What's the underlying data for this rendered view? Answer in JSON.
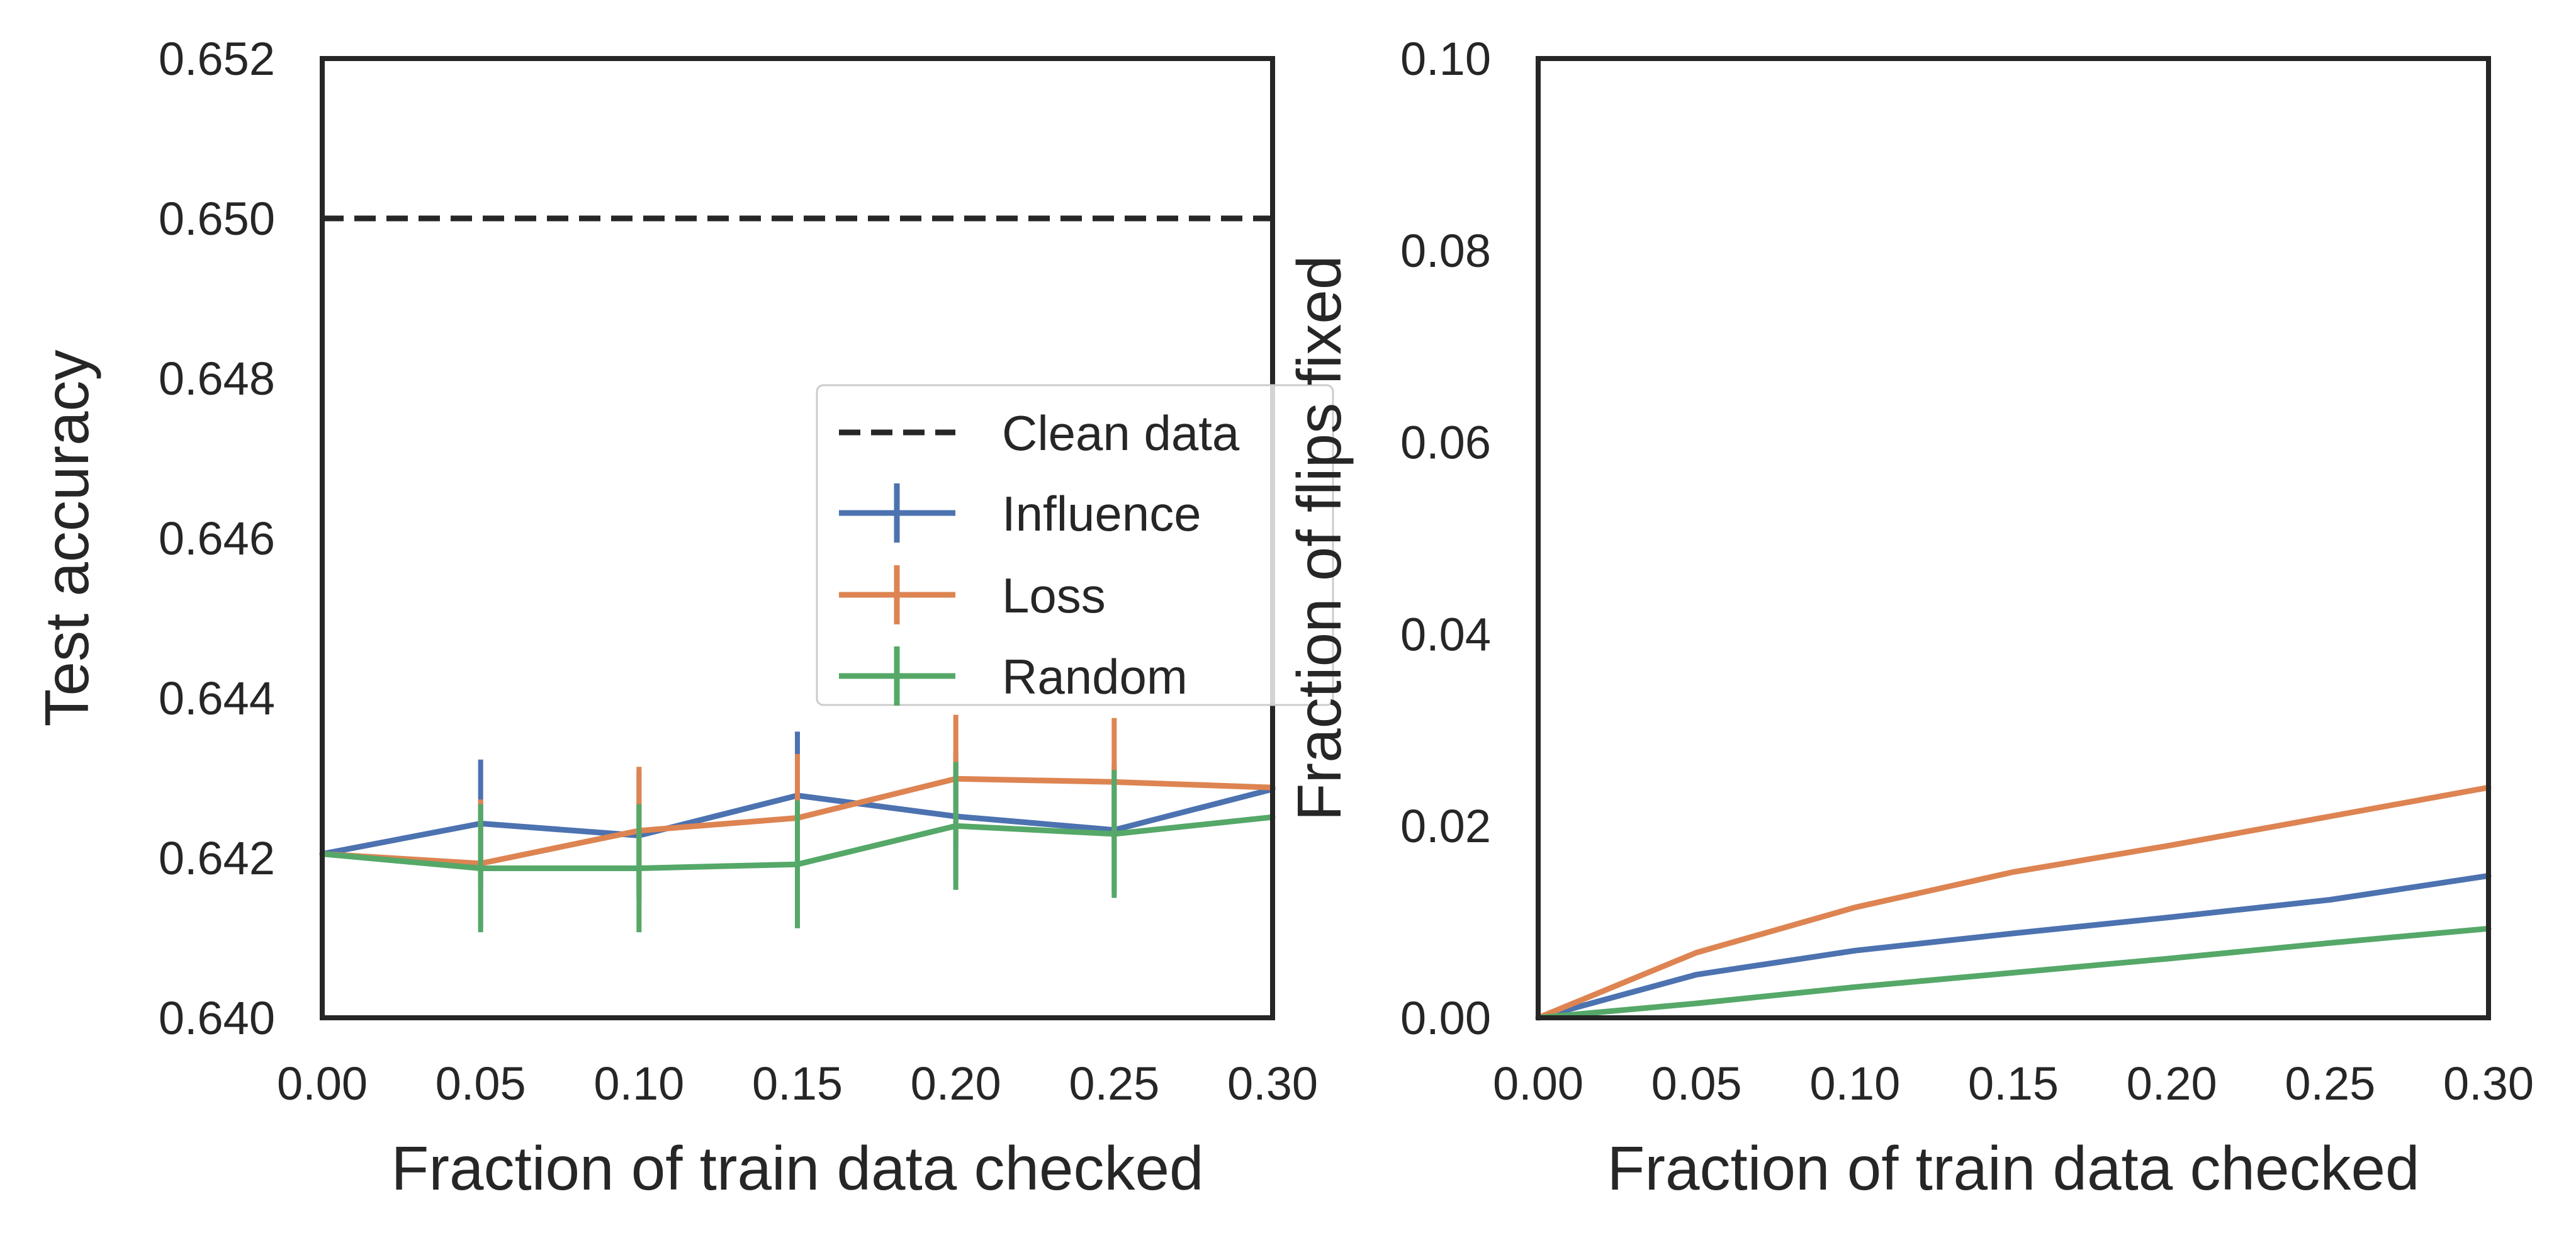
{
  "chart_data": [
    {
      "type": "line",
      "xlabel": "Fraction of train data checked",
      "ylabel": "Test accuracy",
      "xlim": [
        0.0,
        0.3
      ],
      "ylim": [
        0.64,
        0.652
      ],
      "x_ticks": [
        "0.00",
        "0.05",
        "0.10",
        "0.15",
        "0.20",
        "0.25",
        "0.30"
      ],
      "y_ticks": [
        "0.640",
        "0.642",
        "0.644",
        "0.646",
        "0.648",
        "0.650",
        "0.652"
      ],
      "grid": false,
      "legend": "center-right",
      "hline": {
        "name": "Clean data",
        "y": 0.65,
        "style": "dashed",
        "color": "#262626"
      },
      "x": [
        0.0,
        0.05,
        0.1,
        0.15,
        0.2,
        0.25,
        0.3
      ],
      "series": [
        {
          "name": "Influence",
          "color": "#4c72b0",
          "values": [
            0.64205,
            0.64243,
            0.64228,
            0.64278,
            0.64252,
            0.64235,
            0.64286
          ],
          "errors": [
            0.0008,
            0.0008,
            0.0008,
            0.0008,
            0.0008,
            0.0008,
            0.0008
          ]
        },
        {
          "name": "Loss",
          "color": "#dd8452",
          "values": [
            0.64205,
            0.64193,
            0.64234,
            0.6425,
            0.64299,
            0.64295,
            0.64288
          ],
          "errors": [
            0.0008,
            0.0008,
            0.0008,
            0.0008,
            0.0008,
            0.0008,
            0.0008
          ]
        },
        {
          "name": "Random",
          "color": "#55a868",
          "values": [
            0.64205,
            0.64187,
            0.64187,
            0.64192,
            0.6424,
            0.6423,
            0.64251
          ],
          "errors": [
            0.0008,
            0.0008,
            0.0008,
            0.0008,
            0.0008,
            0.0008,
            0.0008
          ]
        }
      ]
    },
    {
      "type": "line",
      "xlabel": "Fraction of train data checked",
      "ylabel": "Fraction of flips fixed",
      "xlim": [
        0.0,
        0.3
      ],
      "ylim": [
        0.0,
        0.1
      ],
      "x_ticks": [
        "0.00",
        "0.05",
        "0.10",
        "0.15",
        "0.20",
        "0.25",
        "0.30"
      ],
      "y_ticks": [
        "0.00",
        "0.02",
        "0.04",
        "0.06",
        "0.08",
        "0.10"
      ],
      "grid": false,
      "x": [
        0.0,
        0.05,
        0.1,
        0.15,
        0.2,
        0.25,
        0.3
      ],
      "series": [
        {
          "name": "Influence",
          "color": "#4c72b0",
          "values": [
            0.0,
            0.0045,
            0.007,
            0.0088,
            0.0105,
            0.0123,
            0.0148
          ]
        },
        {
          "name": "Loss",
          "color": "#dd8452",
          "values": [
            0.0,
            0.0068,
            0.0115,
            0.0152,
            0.018,
            0.021,
            0.024
          ]
        },
        {
          "name": "Random",
          "color": "#55a868",
          "values": [
            0.0,
            0.0015,
            0.0032,
            0.0047,
            0.0062,
            0.0078,
            0.0093
          ]
        }
      ]
    }
  ]
}
